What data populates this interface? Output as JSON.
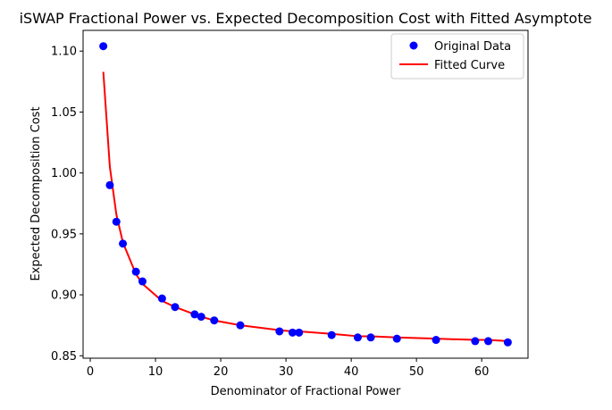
{
  "chart_data": {
    "type": "scatter",
    "title": "iSWAP Fractional Power vs. Expected Decomposition Cost with Fitted Asymptote",
    "xlabel": "Denominator of Fractional Power",
    "ylabel": "Expected Decomposition Cost",
    "xlim": [
      -1.1,
      67.1
    ],
    "ylim": [
      0.848,
      1.117
    ],
    "xticks": [
      0,
      10,
      20,
      30,
      40,
      50,
      60
    ],
    "xtick_labels": [
      "0",
      "10",
      "20",
      "30",
      "40",
      "50",
      "60"
    ],
    "yticks": [
      0.85,
      0.9,
      0.95,
      1.0,
      1.05,
      1.1
    ],
    "ytick_labels": [
      "0.85",
      "0.90",
      "0.95",
      "1.00",
      "1.05",
      "1.10"
    ],
    "grid": false,
    "legend_position": "top-right",
    "series": [
      {
        "name": "Original Data",
        "kind": "scatter",
        "color": "#0000ff",
        "x": [
          2,
          3,
          4,
          5,
          7,
          8,
          11,
          13,
          16,
          17,
          19,
          23,
          29,
          31,
          32,
          37,
          41,
          43,
          47,
          53,
          59,
          61,
          64
        ],
        "y": [
          1.104,
          0.99,
          0.96,
          0.942,
          0.919,
          0.911,
          0.897,
          0.89,
          0.884,
          0.882,
          0.879,
          0.875,
          0.87,
          0.869,
          0.869,
          0.867,
          0.865,
          0.865,
          0.864,
          0.863,
          0.862,
          0.862,
          0.861
        ]
      },
      {
        "name": "Fitted Curve",
        "kind": "line",
        "color": "#ff0000",
        "x": [
          2,
          3,
          4,
          5,
          7,
          8,
          11,
          13,
          16,
          17,
          19,
          23,
          29,
          31,
          32,
          37,
          41,
          43,
          47,
          53,
          59,
          61,
          64
        ],
        "y": [
          1.083,
          1.005,
          0.966,
          0.943,
          0.917,
          0.909,
          0.895,
          0.89,
          0.884,
          0.882,
          0.879,
          0.875,
          0.871,
          0.87,
          0.87,
          0.868,
          0.866,
          0.866,
          0.865,
          0.864,
          0.863,
          0.863,
          0.862
        ]
      }
    ]
  }
}
